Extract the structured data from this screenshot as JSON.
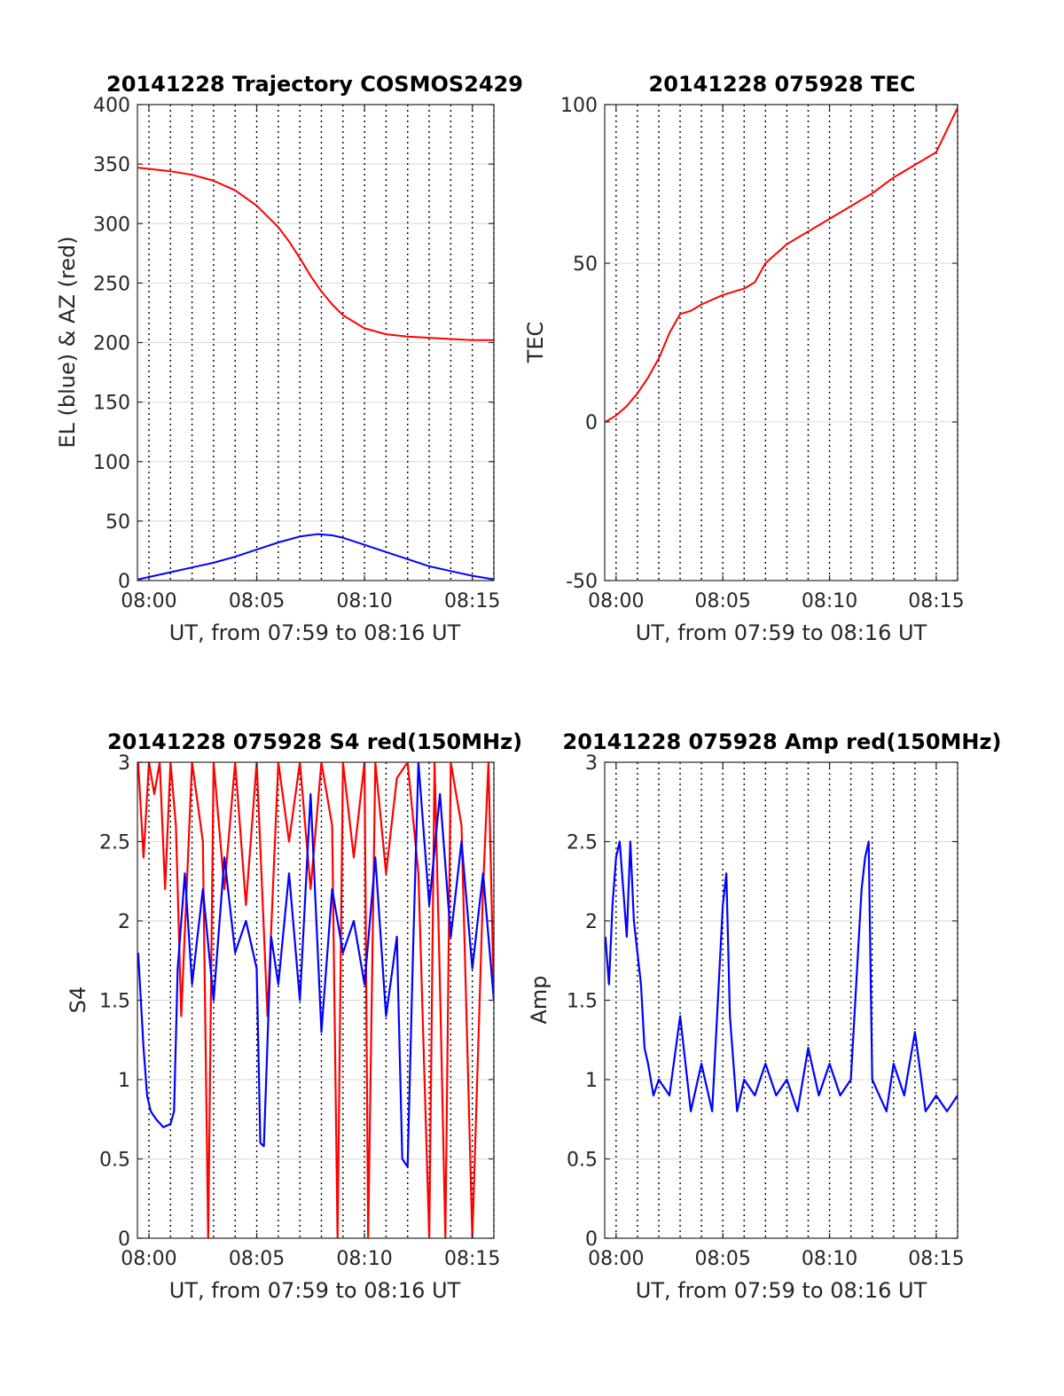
{
  "figure": {
    "panels": [
      {
        "id": "trajectory",
        "title": "20141228 Trajectory COSMOS2429",
        "xlabel": "UT, from 07:59 to 08:16 UT",
        "ylabel": "EL (blue) & AZ (red)",
        "ylim": [
          0,
          400
        ],
        "yticks": [
          0,
          50,
          100,
          150,
          200,
          250,
          300,
          350,
          400
        ],
        "yticklabels": [
          "0",
          "50",
          "100",
          "150",
          "200",
          "250",
          "300",
          "350",
          "400"
        ],
        "vgrid_every_min": 1
      },
      {
        "id": "tec",
        "title": "20141228 075928 TEC",
        "xlabel": "UT, from 07:59 to 08:16 UT",
        "ylabel": "TEC",
        "ylim": [
          -50,
          100
        ],
        "yticks": [
          -50,
          0,
          50,
          100
        ],
        "yticklabels": [
          "-50",
          "0",
          "50",
          "100"
        ],
        "vgrid_every_min": 1
      },
      {
        "id": "s4",
        "title": "20141228 075928 S4 red(150MHz)",
        "xlabel": "UT, from 07:59 to 08:16 UT",
        "ylabel": "S4",
        "ylim": [
          0,
          3
        ],
        "yticks": [
          0,
          0.5,
          1,
          1.5,
          2,
          2.5,
          3
        ],
        "yticklabels": [
          "0",
          "0.5",
          "1",
          "1.5",
          "2",
          "2.5",
          "3"
        ],
        "vgrid_every_min": 1
      },
      {
        "id": "amp",
        "title": "20141228 075928 Amp red(150MHz)",
        "xlabel": "UT, from 07:59 to 08:16 UT",
        "ylabel": "Amp",
        "ylim": [
          0,
          3
        ],
        "yticks": [
          0,
          0.5,
          1,
          1.5,
          2,
          2.5,
          3
        ],
        "yticklabels": [
          "0",
          "0.5",
          "1",
          "1.5",
          "2",
          "2.5",
          "3"
        ],
        "vgrid_every_min": 1
      }
    ],
    "colors": {
      "red": "#ff0000",
      "blue": "#0000ff"
    }
  },
  "chart_data": [
    {
      "type": "line",
      "title": "20141228 Trajectory COSMOS2429",
      "xlabel": "UT, from 07:59 to 08:16 UT",
      "ylabel": "EL (blue) & AZ (red)",
      "xlim": [
        "07:59:28",
        "08:16:00"
      ],
      "xticks": [
        "08:00",
        "08:05",
        "08:10",
        "08:15"
      ],
      "ylim": [
        0,
        400
      ],
      "grid": true,
      "series": [
        {
          "color": "#ff0000",
          "x": [
            "07:59:30",
            "08:00:00",
            "08:01:00",
            "08:02:00",
            "08:03:00",
            "08:04:00",
            "08:05:00",
            "08:06:00",
            "08:06:30",
            "08:07:00",
            "08:07:30",
            "08:08:00",
            "08:08:30",
            "08:09:00",
            "08:10:00",
            "08:11:00",
            "08:12:00",
            "08:13:00",
            "08:14:00",
            "08:15:00",
            "08:16:00"
          ],
          "y": [
            347,
            346,
            344,
            341,
            336,
            328,
            315,
            297,
            285,
            271,
            256,
            243,
            232,
            223,
            212,
            207,
            205,
            204,
            203,
            202,
            202
          ]
        },
        {
          "color": "#0000ff",
          "x": [
            "07:59:30",
            "08:00:00",
            "08:01:00",
            "08:02:00",
            "08:03:00",
            "08:04:00",
            "08:05:00",
            "08:06:00",
            "08:07:00",
            "08:07:50",
            "08:08:30",
            "08:09:00",
            "08:10:00",
            "08:11:00",
            "08:12:00",
            "08:13:00",
            "08:14:00",
            "08:15:00",
            "08:16:00"
          ],
          "y": [
            1,
            3,
            7,
            11,
            15,
            20,
            26,
            32,
            37,
            39,
            38,
            36,
            30,
            24,
            18,
            12,
            8,
            4,
            1
          ]
        }
      ]
    },
    {
      "type": "line",
      "title": "20141228 075928 TEC",
      "xlabel": "UT, from 07:59 to 08:16 UT",
      "ylabel": "TEC",
      "xlim": [
        "07:59:28",
        "08:16:00"
      ],
      "xticks": [
        "08:00",
        "08:05",
        "08:10",
        "08:15"
      ],
      "ylim": [
        -50,
        100
      ],
      "grid": true,
      "series": [
        {
          "color": "#ff0000",
          "x": [
            "07:59:30",
            "08:00:00",
            "08:00:30",
            "08:01:00",
            "08:01:30",
            "08:02:00",
            "08:02:30",
            "08:03:00",
            "08:03:30",
            "08:04:00",
            "08:05:00",
            "08:06:00",
            "08:06:30",
            "08:07:00",
            "08:08:00",
            "08:09:00",
            "08:10:00",
            "08:11:00",
            "08:12:00",
            "08:13:00",
            "08:14:00",
            "08:14:30",
            "08:15:00",
            "08:15:30",
            "08:16:00"
          ],
          "y": [
            0,
            2,
            5,
            9,
            14,
            20,
            28,
            34,
            35,
            37,
            40,
            42,
            44,
            50,
            56,
            60,
            64,
            68,
            72,
            77,
            81,
            83,
            85,
            92,
            99
          ]
        }
      ]
    },
    {
      "type": "line",
      "title": "20141228 075928 S4 red(150MHz)",
      "xlabel": "UT, from 07:59 to 08:16 UT",
      "ylabel": "S4",
      "xlim": [
        "07:59:28",
        "08:16:00"
      ],
      "xticks": [
        "08:00",
        "08:05",
        "08:10",
        "08:15"
      ],
      "ylim": [
        0,
        3
      ],
      "grid": true,
      "series": [
        {
          "color": "#ff0000",
          "x": [
            "07:59:30",
            "07:59:45",
            "08:00:00",
            "08:00:15",
            "08:00:30",
            "08:00:45",
            "08:01:00",
            "08:01:15",
            "08:01:30",
            "08:02:00",
            "08:02:30",
            "08:02:45",
            "08:03:00",
            "08:03:30",
            "08:04:00",
            "08:04:30",
            "08:05:00",
            "08:05:30",
            "08:06:00",
            "08:06:30",
            "08:07:00",
            "08:07:30",
            "08:08:00",
            "08:08:30",
            "08:08:45",
            "08:09:00",
            "08:09:30",
            "08:10:00",
            "08:10:10",
            "08:10:30",
            "08:11:00",
            "08:11:30",
            "08:12:00",
            "08:12:30",
            "08:13:00",
            "08:13:15",
            "08:13:30",
            "08:13:45",
            "08:14:00",
            "08:14:30",
            "08:15:00",
            "08:15:30",
            "08:15:45",
            "08:16:00"
          ],
          "y": [
            3,
            2.4,
            3,
            2.8,
            3,
            2.2,
            3,
            2.6,
            1.4,
            3,
            2.5,
            0,
            3,
            2.2,
            3,
            2.1,
            3,
            1.4,
            3,
            2.5,
            3,
            2.2,
            3,
            2.6,
            0,
            3,
            2.4,
            3,
            0,
            3,
            2.3,
            2.9,
            3,
            2.3,
            0,
            3,
            1.6,
            0,
            3,
            2.6,
            0,
            2.2,
            3,
            1.5
          ]
        },
        {
          "color": "#0000ff",
          "x": [
            "07:59:30",
            "07:59:45",
            "07:59:55",
            "08:00:05",
            "08:00:20",
            "08:00:40",
            "08:01:00",
            "08:01:10",
            "08:01:20",
            "08:01:40",
            "08:02:00",
            "08:02:30",
            "08:03:00",
            "08:03:30",
            "08:04:00",
            "08:04:30",
            "08:05:00",
            "08:05:10",
            "08:05:20",
            "08:05:40",
            "08:06:00",
            "08:06:30",
            "08:07:00",
            "08:07:30",
            "08:08:00",
            "08:08:30",
            "08:09:00",
            "08:09:30",
            "08:10:00",
            "08:10:30",
            "08:11:00",
            "08:11:30",
            "08:11:45",
            "08:12:00",
            "08:12:15",
            "08:12:30",
            "08:13:00",
            "08:13:30",
            "08:14:00",
            "08:14:30",
            "08:15:00",
            "08:15:30",
            "08:16:00"
          ],
          "y": [
            1.8,
            1.2,
            0.9,
            0.8,
            0.75,
            0.7,
            0.72,
            0.8,
            1.7,
            2.3,
            1.6,
            2.2,
            1.5,
            2.4,
            1.8,
            2.0,
            1.7,
            0.6,
            0.58,
            1.9,
            1.6,
            2.3,
            1.5,
            2.8,
            1.3,
            2.2,
            1.8,
            2.0,
            1.6,
            2.4,
            1.4,
            1.9,
            0.5,
            0.45,
            1.8,
            3.0,
            2.1,
            2.8,
            1.9,
            2.5,
            1.7,
            2.3,
            1.5
          ]
        }
      ]
    },
    {
      "type": "line",
      "title": "20141228 075928 Amp red(150MHz)",
      "xlabel": "UT, from 07:59 to 08:16 UT",
      "ylabel": "Amp",
      "xlim": [
        "07:59:28",
        "08:16:00"
      ],
      "xticks": [
        "08:00",
        "08:05",
        "08:10",
        "08:15"
      ],
      "ylim": [
        0,
        3
      ],
      "grid": true,
      "series": [
        {
          "color": "#0000ff",
          "x": [
            "07:59:30",
            "07:59:40",
            "07:59:50",
            "08:00:00",
            "08:00:10",
            "08:00:20",
            "08:00:30",
            "08:00:40",
            "08:00:50",
            "08:01:00",
            "08:01:10",
            "08:01:20",
            "08:01:30",
            "08:01:45",
            "08:02:00",
            "08:02:30",
            "08:03:00",
            "08:03:30",
            "08:04:00",
            "08:04:30",
            "08:05:00",
            "08:05:05",
            "08:05:10",
            "08:05:20",
            "08:05:40",
            "08:06:00",
            "08:06:30",
            "08:07:00",
            "08:07:30",
            "08:08:00",
            "08:08:30",
            "08:09:00",
            "08:09:30",
            "08:10:00",
            "08:10:30",
            "08:11:00",
            "08:11:30",
            "08:11:40",
            "08:11:50",
            "08:12:00",
            "08:12:20",
            "08:12:40",
            "08:13:00",
            "08:13:30",
            "08:14:00",
            "08:14:30",
            "08:15:00",
            "08:15:30",
            "08:16:00"
          ],
          "y": [
            1.9,
            1.6,
            2.1,
            2.4,
            2.5,
            2.2,
            1.9,
            2.5,
            2.0,
            1.8,
            1.6,
            1.2,
            1.1,
            0.9,
            1.0,
            0.9,
            1.4,
            0.8,
            1.1,
            0.8,
            2.1,
            2.2,
            2.3,
            1.4,
            0.8,
            1.0,
            0.9,
            1.1,
            0.9,
            1.0,
            0.8,
            1.2,
            0.9,
            1.1,
            0.9,
            1.0,
            2.2,
            2.4,
            2.5,
            1.0,
            0.9,
            0.8,
            1.1,
            0.9,
            1.3,
            0.8,
            0.9,
            0.8,
            0.9
          ]
        }
      ]
    }
  ]
}
